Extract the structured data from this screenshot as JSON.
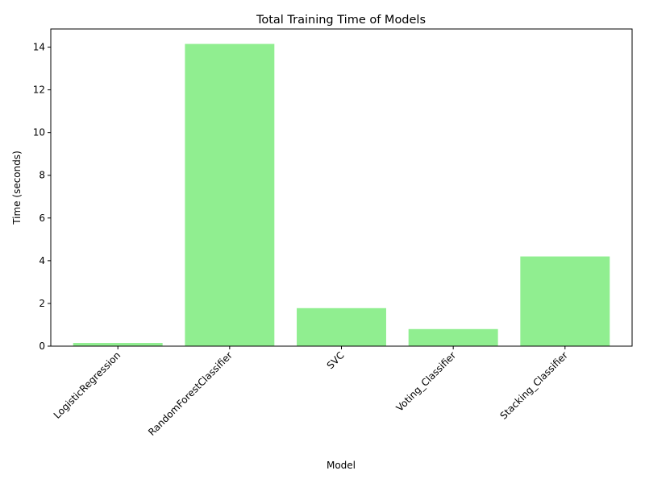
{
  "chart_data": {
    "type": "bar",
    "title": "Total Training Time of Models",
    "xlabel": "Model",
    "ylabel": "Time (seconds)",
    "categories": [
      "LogisticRegression",
      "RandomForestClassifier",
      "SVC",
      "Voting_Classifier",
      "Stacking_Classifier"
    ],
    "values": [
      0.15,
      14.15,
      1.78,
      0.8,
      4.2
    ],
    "ylim": [
      0,
      14.85
    ],
    "yticks": [
      0,
      2,
      4,
      6,
      8,
      10,
      12,
      14
    ],
    "bar_color": "#90ee90",
    "grid": false,
    "legend": "none"
  }
}
